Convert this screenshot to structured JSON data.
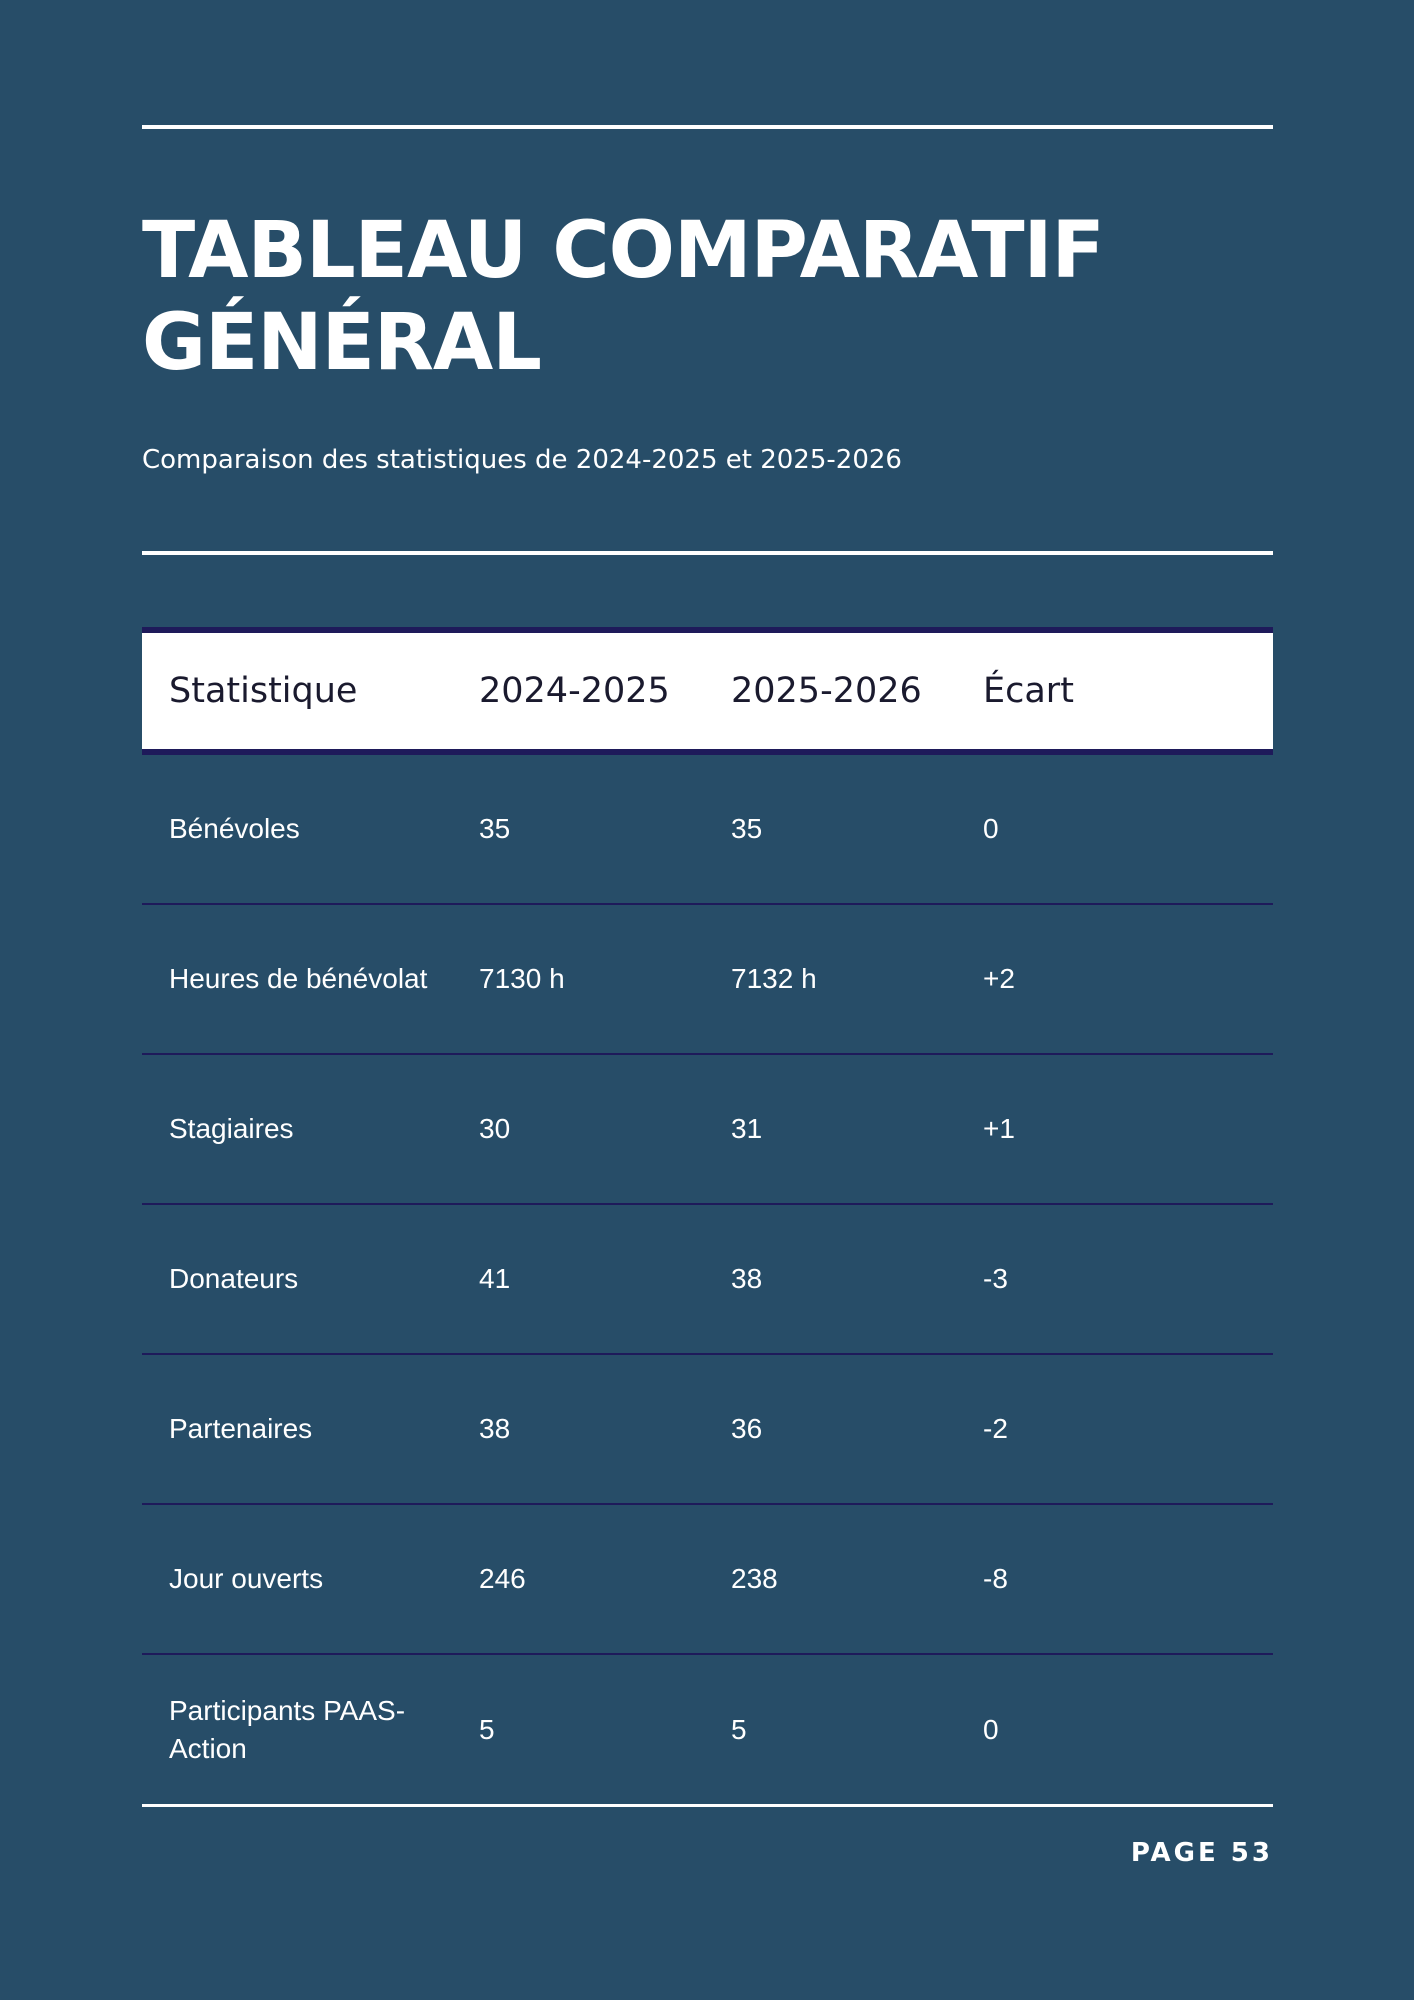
{
  "title": "TABLEAU COMPARATIF\nGÉNÉRAL",
  "subtitle": "Comparaison des statistiques de 2024-2025 et 2025-2026",
  "table": {
    "headers": [
      "Statistique",
      "2024-2025",
      "2025-2026",
      "Écart"
    ],
    "rows": [
      [
        "Bénévoles",
        "35",
        "35",
        "0"
      ],
      [
        "Heures de bénévolat",
        "7130 h",
        "7132 h",
        "+2"
      ],
      [
        "Stagiaires",
        "30",
        "31",
        "+1"
      ],
      [
        "Donateurs",
        "41",
        "38",
        "-3"
      ],
      [
        "Partenaires",
        "38",
        "36",
        "-2"
      ],
      [
        "Jour ouverts",
        "246",
        "238",
        "-8"
      ],
      [
        "Participants PAAS-Action",
        "5",
        "5",
        "0"
      ]
    ]
  },
  "footer": {
    "page": "PAGE 53"
  }
}
